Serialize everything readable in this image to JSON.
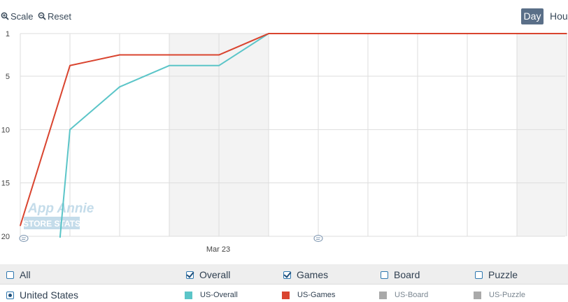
{
  "toolbar": {
    "scale_label": "Scale",
    "reset_label": "Reset",
    "range_options": [
      "Day",
      "Hour"
    ],
    "active_range": "Day"
  },
  "watermark": {
    "line1": "App Annie",
    "line2": "STORE STATS"
  },
  "colors": {
    "us_overall": "#5bc5c8",
    "us_games": "#d9442f",
    "inactive": "#a9a9a9",
    "active_button": "#5a6f88",
    "weekend_band": "#f3f3f3"
  },
  "chart_data": {
    "type": "line",
    "y_inverted": true,
    "ylim": [
      1,
      20
    ],
    "yticks": [
      1,
      5,
      10,
      15,
      20
    ],
    "x_tick_label": "Mar 23",
    "x": [
      0,
      1,
      2,
      3,
      4,
      5,
      6,
      7,
      8,
      9,
      10,
      11
    ],
    "series": [
      {
        "name": "US-Overall",
        "values": [
          null,
          10,
          6,
          4,
          4,
          1,
          1,
          1,
          1,
          1,
          1,
          1
        ]
      },
      {
        "name": "US-Games",
        "values": [
          19,
          4,
          3,
          3,
          3,
          1,
          1,
          1,
          1,
          1,
          1,
          1
        ]
      }
    ],
    "overall_start": {
      "x": 0.8,
      "y": 20
    }
  },
  "filters": {
    "all_label": "All",
    "categories": [
      {
        "label": "Overall",
        "checked": true
      },
      {
        "label": "Games",
        "checked": true
      },
      {
        "label": "Board",
        "checked": false
      },
      {
        "label": "Puzzle",
        "checked": false
      }
    ],
    "country_label": "United States",
    "series_legend": [
      "US-Overall",
      "US-Games",
      "US-Board",
      "US-Puzzle"
    ]
  }
}
